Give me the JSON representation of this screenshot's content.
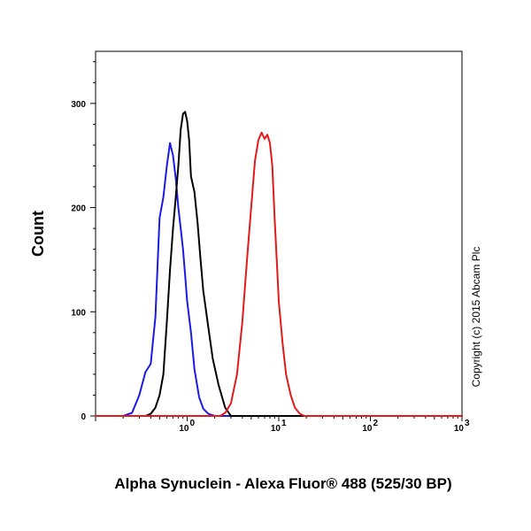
{
  "chart_data": {
    "type": "line",
    "title": "",
    "xlabel": "Alpha Synuclein - Alexa Fluor® 488 (525/30 BP)",
    "ylabel": "Count",
    "x_scale": "log",
    "xlim": [
      0.1,
      1000
    ],
    "ylim": [
      0,
      350
    ],
    "x_ticks": [
      {
        "value": 1,
        "base": "10",
        "exp": "0"
      },
      {
        "value": 10,
        "base": "10",
        "exp": "1"
      },
      {
        "value": 100,
        "base": "10",
        "exp": "2"
      },
      {
        "value": 1000,
        "base": "10",
        "exp": "3"
      }
    ],
    "y_ticks": [
      {
        "value": 0,
        "label": "0"
      },
      {
        "value": 100,
        "label": "100"
      },
      {
        "value": 200,
        "label": "200"
      },
      {
        "value": 300,
        "label": "300"
      }
    ],
    "grid": false,
    "legend": "none",
    "series": [
      {
        "color": "#1a1ae6",
        "x": [
          0.1,
          0.2,
          0.25,
          0.3,
          0.35,
          0.4,
          0.45,
          0.5,
          0.55,
          0.6,
          0.65,
          0.7,
          0.75,
          0.8,
          0.85,
          0.9,
          0.95,
          1.0,
          1.1,
          1.2,
          1.35,
          1.5,
          1.7,
          2.0,
          10,
          1000
        ],
        "y": [
          0,
          0,
          3,
          20,
          42,
          50,
          95,
          190,
          210,
          240,
          262,
          250,
          228,
          200,
          180,
          160,
          135,
          110,
          80,
          45,
          18,
          7,
          2,
          0,
          0,
          0
        ]
      },
      {
        "color": "#000000",
        "x": [
          0.1,
          0.35,
          0.4,
          0.45,
          0.5,
          0.55,
          0.6,
          0.65,
          0.7,
          0.75,
          0.8,
          0.85,
          0.9,
          0.95,
          1.0,
          1.05,
          1.1,
          1.2,
          1.3,
          1.4,
          1.5,
          1.7,
          1.9,
          2.2,
          2.6,
          3.0,
          10,
          1000
        ],
        "y": [
          0,
          0,
          2,
          8,
          20,
          40,
          90,
          140,
          180,
          210,
          240,
          275,
          290,
          292,
          283,
          265,
          230,
          215,
          185,
          150,
          120,
          85,
          55,
          30,
          8,
          0,
          0,
          0
        ]
      },
      {
        "color": "#e31a1a",
        "x": [
          0.1,
          2.3,
          2.6,
          3.0,
          3.5,
          4.0,
          4.5,
          5.0,
          5.5,
          6.0,
          6.5,
          7.0,
          7.5,
          8.0,
          8.5,
          9.0,
          9.5,
          10.0,
          11,
          12,
          13.5,
          15,
          17,
          19,
          22,
          1000
        ],
        "y": [
          0,
          0,
          3,
          12,
          40,
          90,
          150,
          200,
          245,
          265,
          272,
          266,
          270,
          262,
          240,
          190,
          150,
          110,
          70,
          40,
          20,
          8,
          2,
          0,
          0,
          0
        ]
      }
    ]
  },
  "copyright_text": "Copyright (c) 2015 Abcam Plc"
}
